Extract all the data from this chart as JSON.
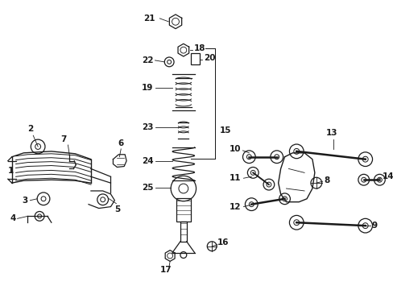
{
  "bg_color": "#ffffff",
  "line_color": "#1a1a1a",
  "figsize": [
    4.89,
    3.6
  ],
  "dpi": 100,
  "lw": 0.9
}
